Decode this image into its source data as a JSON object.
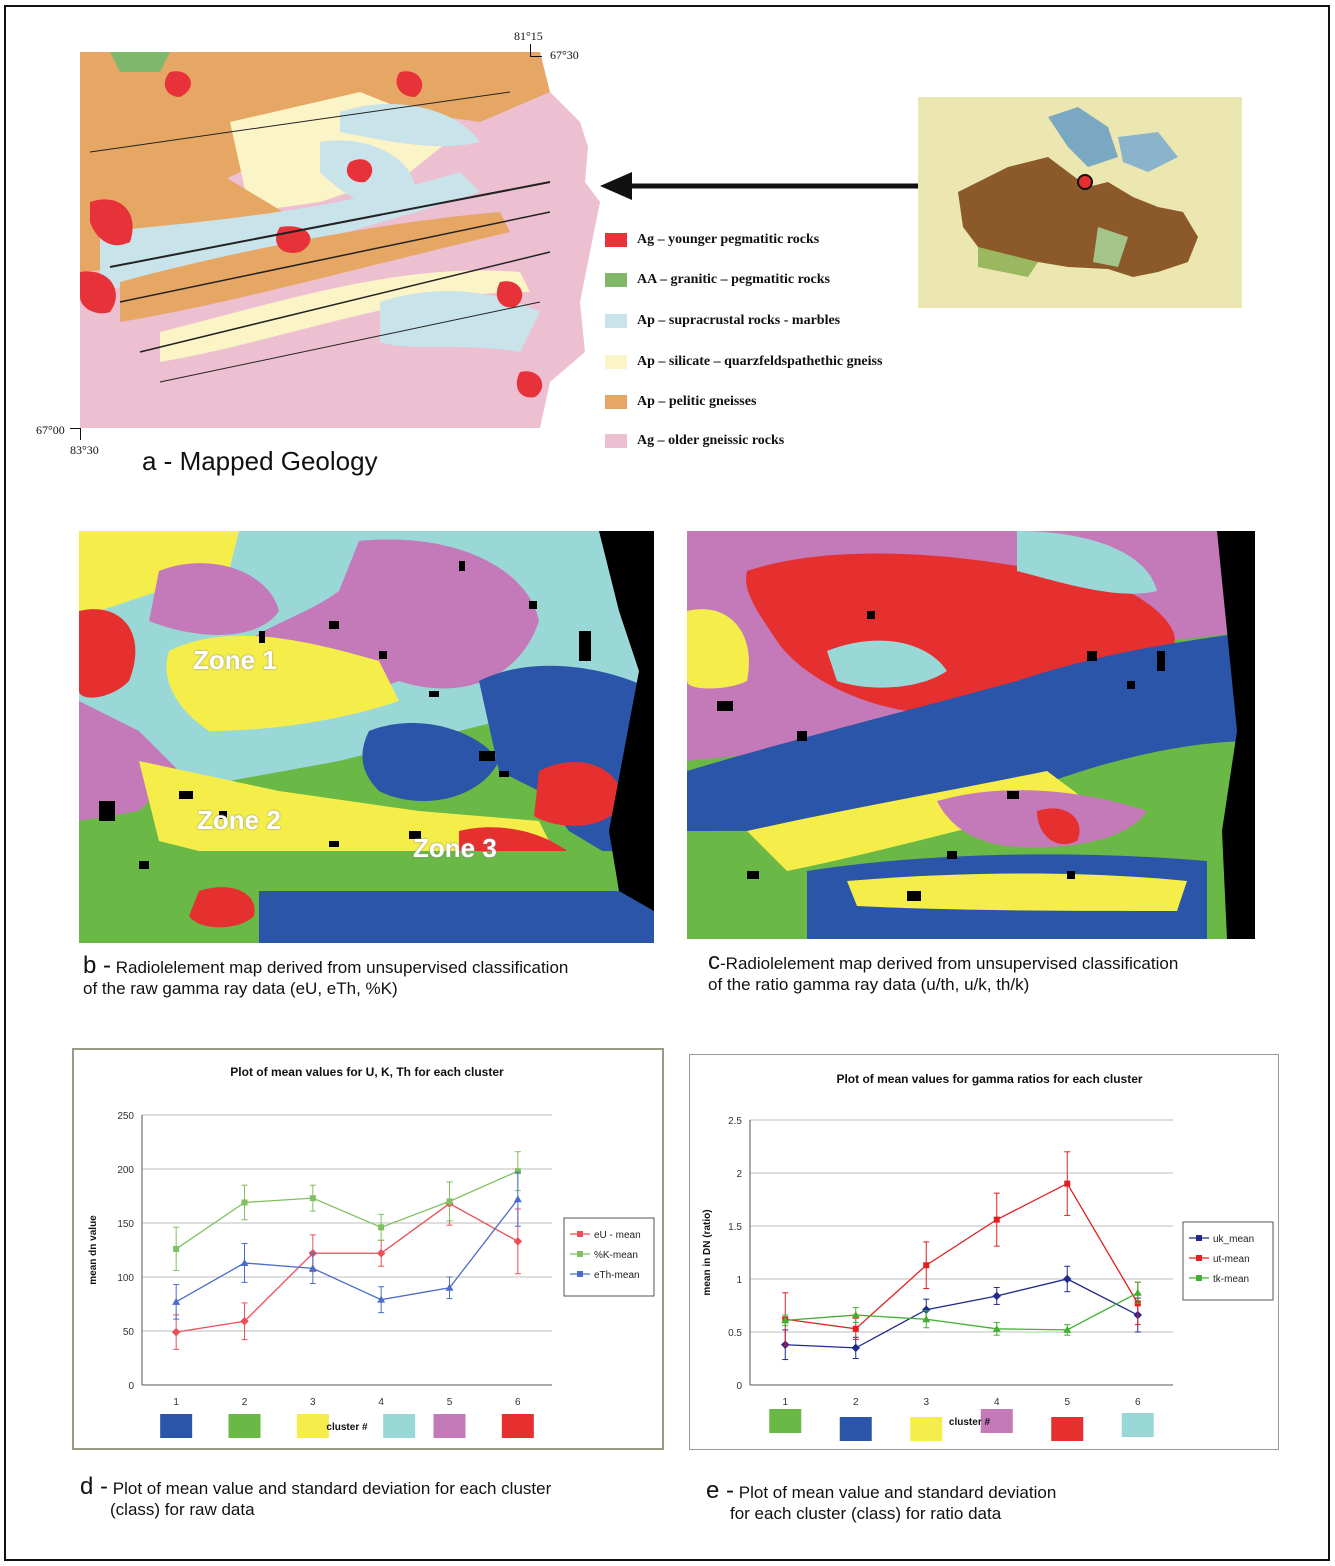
{
  "panel_a": {
    "caption": "a - Mapped Geology",
    "coords": {
      "top_lon": "81°15",
      "top_lat": "67°30",
      "bottom_lat": "67°00",
      "bottom_lon": "83°30"
    },
    "legend": [
      {
        "code": "Ag",
        "text": "Ag – younger pegmatitic rocks",
        "color": "#e8323a"
      },
      {
        "code": "AA",
        "text": "AA – granitic – pegmatitic rocks",
        "color": "#7fb86a"
      },
      {
        "code": "Ap",
        "text": "Ap – supracrustal rocks - marbles",
        "color": "#c9e3ea"
      },
      {
        "code": "Ap",
        "text": "Ap – silicate – quarzfeldspathethic gneiss",
        "color": "#fbf4c6"
      },
      {
        "code": "Ap",
        "text": "Ap – pelitic gneisses",
        "color": "#e6a765"
      },
      {
        "code": "Ag",
        "text": "Ag – older gneissic rocks",
        "color": "#ecbfd1"
      }
    ]
  },
  "panel_b": {
    "caption_letter": "b -",
    "caption_line1": "Radiolelement map derived from unsupervised classification",
    "caption_line2": "of the raw gamma ray data (eU, eTh, %K)",
    "zones": [
      "Zone 1",
      "Zone 2",
      "Zone 3"
    ]
  },
  "panel_c": {
    "caption_letter": "c",
    "caption_line1": "-Radiolelement map derived from unsupervised classification",
    "caption_line2": "of the ratio gamma ray data (u/th, u/k, th/k)"
  },
  "panel_d": {
    "caption_letter": "d -",
    "caption_line1": "Plot of mean value and standard deviation for each cluster",
    "caption_line2": "(class) for raw data",
    "cluster_label": "cluster #",
    "cluster_colors": [
      "#2b55a8",
      "#6ab845",
      "#f5ee4a",
      "#9ad8d8",
      "#c47ab8",
      "#e63030"
    ]
  },
  "panel_e": {
    "caption_letter": "e -",
    "caption_line1": "Plot of mean value and standard deviation",
    "caption_line2": "for each cluster (class) for ratio data",
    "cluster_label": "cluster #",
    "cluster_colors": [
      "#6ab845",
      "#2b55a8",
      "#f5ee4a",
      "#c47ab8",
      "#e63030",
      "#9ad8d8"
    ]
  },
  "chart_data": [
    {
      "type": "line",
      "title": "Plot of mean values for U, K, Th for each cluster",
      "xlabel": "cluster #",
      "ylabel": "mean dn value",
      "x": [
        1,
        2,
        3,
        4,
        5,
        6
      ],
      "ylim": [
        0,
        250
      ],
      "yticks": [
        0,
        50,
        100,
        150,
        200,
        250
      ],
      "grid": true,
      "legend": "right",
      "series": [
        {
          "name": "eU - mean",
          "color": "#e8505a",
          "values": [
            49,
            59,
            122,
            122,
            168,
            133
          ],
          "err": [
            16,
            17,
            17,
            12,
            20,
            30
          ]
        },
        {
          "name": "%K-mean",
          "color": "#80c060",
          "values": [
            126,
            169,
            173,
            146,
            170,
            198
          ],
          "err": [
            20,
            16,
            12,
            12,
            18,
            18
          ]
        },
        {
          "name": "eTh-mean",
          "color": "#4a6cc8",
          "values": [
            77,
            113,
            108,
            79,
            90,
            172
          ],
          "err": [
            16,
            18,
            14,
            12,
            10,
            25
          ]
        }
      ]
    },
    {
      "type": "line",
      "title": "Plot of mean values for gamma ratios for each cluster",
      "xlabel": "cluster #",
      "ylabel": "mean in DN (ratio)",
      "x": [
        1,
        2,
        3,
        4,
        5,
        6
      ],
      "ylim": [
        0,
        2.5
      ],
      "yticks": [
        0,
        0.5,
        1,
        1.5,
        2,
        2.5
      ],
      "grid": true,
      "legend": "right",
      "series": [
        {
          "name": "uk_mean",
          "color": "#1f2a8c",
          "values": [
            0.38,
            0.35,
            0.71,
            0.84,
            1.0,
            0.66
          ],
          "err": [
            0.14,
            0.1,
            0.1,
            0.08,
            0.12,
            0.16
          ]
        },
        {
          "name": "ut-mean",
          "color": "#e02020",
          "values": [
            0.62,
            0.53,
            1.13,
            1.56,
            1.9,
            0.77
          ],
          "err": [
            0.25,
            0.1,
            0.22,
            0.25,
            0.3,
            0.2
          ]
        },
        {
          "name": "tk-mean",
          "color": "#40b030",
          "values": [
            0.61,
            0.66,
            0.62,
            0.53,
            0.52,
            0.87
          ],
          "err": [
            0.05,
            0.07,
            0.08,
            0.06,
            0.05,
            0.1
          ]
        }
      ]
    }
  ]
}
